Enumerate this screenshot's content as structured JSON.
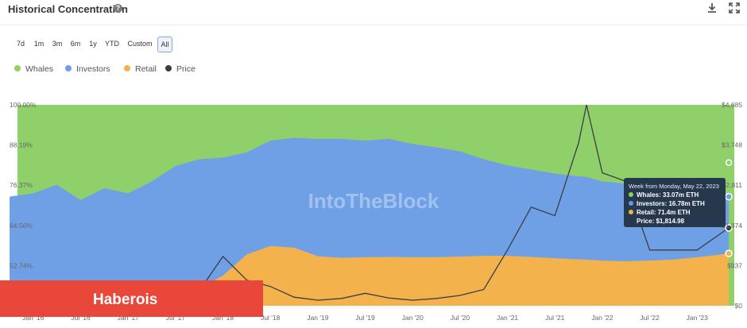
{
  "header": {
    "title": "Historical Concentration",
    "help_icon": "question-icon",
    "download_icon": "download-icon",
    "expand_icon": "expand-icon"
  },
  "range_selector": {
    "options": [
      "7d",
      "1m",
      "3m",
      "6m",
      "1y",
      "YTD",
      "Custom",
      "All"
    ],
    "selected": "All"
  },
  "legend": [
    {
      "label": "Whales",
      "color": "#8fd06b"
    },
    {
      "label": "Investors",
      "color": "#6fa0e5"
    },
    {
      "label": "Retail",
      "color": "#f3b24c"
    },
    {
      "label": "Price",
      "color": "#3a3d44"
    }
  ],
  "watermark": "IntoTheBlock",
  "tooltip": {
    "heading": "Week from Monday, May 22, 2023",
    "rows": [
      {
        "text": "Whales: 33.07m ETH",
        "color": "#7ed957"
      },
      {
        "text": "Investors: 16.78m ETH",
        "color": "#5b9bef"
      },
      {
        "text": "Retail: 71.4m ETH",
        "color": "#f5b041"
      },
      {
        "text": "Price: $1,814.98",
        "color": ""
      }
    ]
  },
  "brand_banner": {
    "text": "Haberois"
  },
  "chart_data": {
    "type": "area",
    "stacked_percent": true,
    "x_tick_labels": [
      "Jan '16",
      "Jul '16",
      "Jan '17",
      "Jul '17",
      "Jan '18",
      "Jul '18",
      "Jan '19",
      "Jul '19",
      "Jan '20",
      "Jul '20",
      "Jan '21",
      "Jul '21",
      "Jan '22",
      "Jul '22",
      "Jan '23"
    ],
    "y_left_ticks": [
      "100.00%",
      "88.19%",
      "76.37%",
      "64.56%",
      "52.74%",
      "40.93%"
    ],
    "y_left_range": [
      40.93,
      100.0
    ],
    "y_right_ticks": [
      "$4,685",
      "$3,748",
      "$2,811",
      "$1,874",
      "$937",
      "$0"
    ],
    "y_right_range": [
      0,
      4685
    ],
    "x": [
      "2015-10",
      "2016-01",
      "2016-04",
      "2016-07",
      "2016-10",
      "2017-01",
      "2017-04",
      "2017-07",
      "2017-10",
      "2018-01",
      "2018-04",
      "2018-07",
      "2018-10",
      "2019-01",
      "2019-04",
      "2019-07",
      "2019-10",
      "2020-01",
      "2020-04",
      "2020-07",
      "2020-10",
      "2021-01",
      "2021-04",
      "2021-07",
      "2021-10",
      "2021-11",
      "2022-01",
      "2022-04",
      "2022-07",
      "2022-10",
      "2023-01",
      "2023-05"
    ],
    "series": [
      {
        "name": "Retail",
        "values": [
          41.0,
          41.3,
          44.0,
          42.0,
          41.6,
          42.0,
          44.5,
          45.2,
          46.0,
          49.8,
          56.0,
          58.5,
          58.0,
          55.5,
          55.0,
          55.2,
          55.3,
          55.2,
          55.2,
          55.4,
          55.6,
          55.6,
          55.3,
          54.9,
          54.6,
          54.5,
          54.2,
          54.0,
          54.2,
          54.5,
          55.2,
          56.3
        ]
      },
      {
        "name": "Investors",
        "values": [
          73.0,
          74.0,
          76.5,
          72.0,
          75.5,
          74.0,
          77.5,
          82.0,
          84.0,
          84.5,
          86.0,
          89.5,
          90.3,
          90.0,
          90.0,
          89.5,
          90.0,
          88.5,
          87.5,
          86.3,
          84.0,
          82.2,
          81.0,
          79.8,
          79.0,
          78.8,
          77.5,
          76.8,
          76.5,
          76.2,
          75.5,
          73.0
        ]
      },
      {
        "name": "Price",
        "values": [
          1,
          9,
          13,
          11,
          12,
          10,
          60,
          300,
          350,
          1150,
          600,
          450,
          200,
          130,
          170,
          290,
          180,
          130,
          170,
          240,
          380,
          1300,
          2300,
          2100,
          3800,
          4685,
          3100,
          2900,
          1300,
          1300,
          1300,
          1815
        ]
      }
    ],
    "whales_fill_to": 100.0,
    "grid": false,
    "legend_position": "top-left"
  }
}
